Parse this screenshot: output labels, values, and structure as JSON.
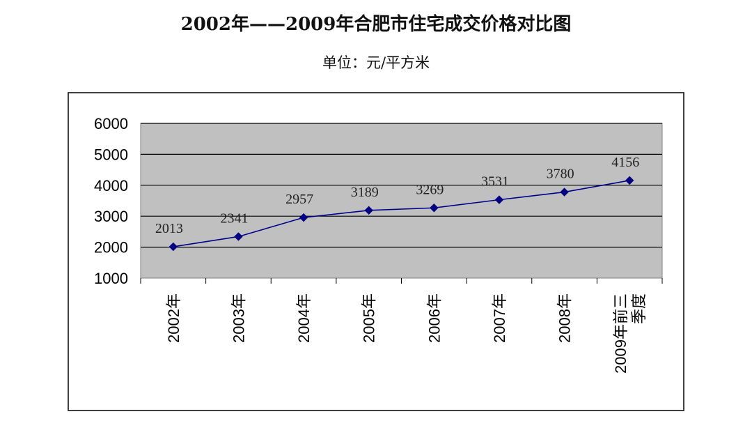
{
  "chart_data": {
    "type": "line",
    "title": "2002年——2009年合肥市住宅成交价格对比图",
    "subtitle": "单位：元/平方米",
    "xlabel": "",
    "ylabel": "",
    "categories": [
      "2002年",
      "2003年",
      "2004年",
      "2005年",
      "2006年",
      "2007年",
      "2008年",
      "2009年前三季度"
    ],
    "category_lines": [
      [
        "2002年"
      ],
      [
        "2003年"
      ],
      [
        "2004年"
      ],
      [
        "2005年"
      ],
      [
        "2006年"
      ],
      [
        "2007年"
      ],
      [
        "2008年"
      ],
      [
        "2009年前三",
        "季度"
      ]
    ],
    "values": [
      2013,
      2341,
      2957,
      3189,
      3269,
      3531,
      3780,
      4156
    ],
    "value_labels": [
      "2013",
      "2341",
      "2957",
      "3189",
      "3269",
      "3531",
      "3780",
      "4156"
    ],
    "ylim": [
      1000,
      6000
    ],
    "yticks": [
      "1000",
      "2000",
      "3000",
      "4000",
      "5000",
      "6000"
    ],
    "grid": true,
    "legend": "none",
    "colors": {
      "line": "#00008b",
      "marker": "#000080",
      "plot_background": "#c0c0c0",
      "gridline": "#000000"
    }
  }
}
